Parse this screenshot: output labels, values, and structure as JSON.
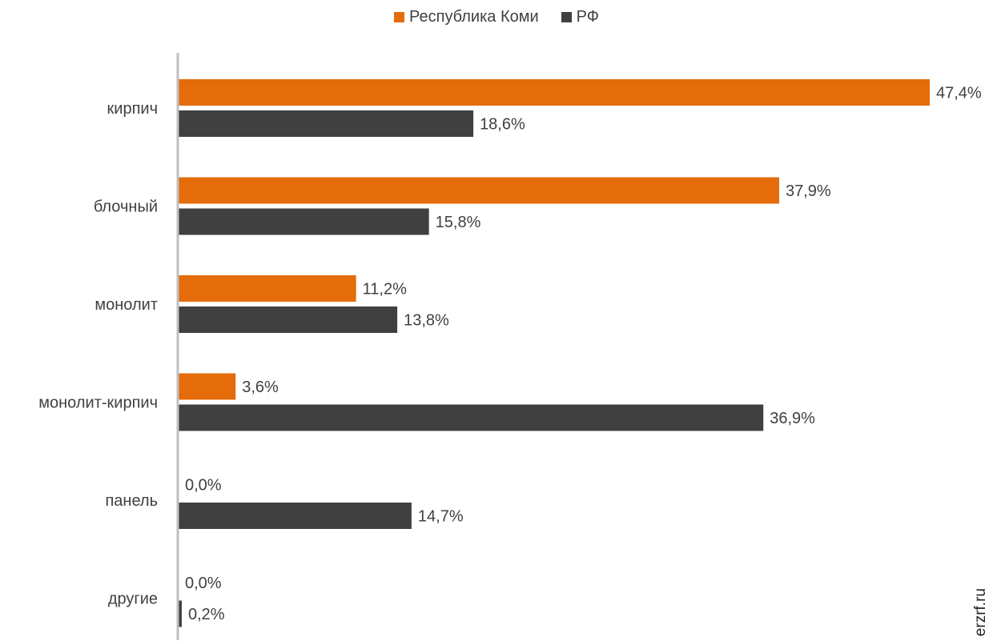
{
  "chart_data": {
    "type": "bar",
    "orientation": "horizontal",
    "title": "",
    "xlabel": "",
    "ylabel": "",
    "categories": [
      "кирпич",
      "блочный",
      "монолит",
      "монолит-кирпич",
      "панель",
      "другие"
    ],
    "series": [
      {
        "name": "Республика Коми",
        "color": "#E46C0A",
        "values": [
          47.4,
          37.9,
          11.2,
          3.6,
          0.0,
          0.0
        ],
        "labels": [
          "47,4%",
          "37,9%",
          "11,2%",
          "3,6%",
          "0,0%",
          "0,0%"
        ]
      },
      {
        "name": "РФ",
        "color": "#404040",
        "values": [
          18.6,
          15.8,
          13.8,
          36.9,
          14.7,
          0.2
        ],
        "labels": [
          "18,6%",
          "15,8%",
          "13,8%",
          "36,9%",
          "14,7%",
          "0,2%"
        ]
      }
    ],
    "xlim": [
      0,
      47.4
    ],
    "grid": false,
    "legend_position": "top-center"
  },
  "watermark": "erzrf.ru"
}
